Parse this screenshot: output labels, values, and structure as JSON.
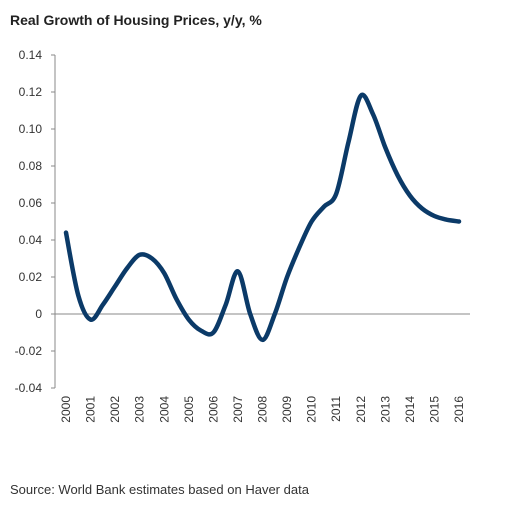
{
  "chart_data": {
    "type": "line",
    "title": "Real Growth of Housing Prices, y/y, %",
    "xlabel": "",
    "ylabel": "",
    "source": "Source: World Bank estimates based on Haver data",
    "ylim": [
      -0.04,
      0.14
    ],
    "y_ticks": [
      0.14,
      0.12,
      0.1,
      0.08,
      0.06,
      0.04,
      0.02,
      0,
      -0.02,
      -0.04
    ],
    "y_tick_labels": [
      "0.14",
      "0.12",
      "0.10",
      "0.08",
      "0.06",
      "0.04",
      "0.02",
      "0",
      "-0.02",
      "-0.04"
    ],
    "categories": [
      "2000",
      "2001",
      "2002",
      "2003",
      "2004",
      "2005",
      "2006",
      "2007",
      "2008",
      "2009",
      "2010",
      "2011",
      "2012",
      "2013",
      "2014",
      "2015",
      "2016"
    ],
    "x": [
      2000,
      2000.5,
      2001,
      2001.5,
      2002,
      2002.5,
      2003,
      2003.5,
      2004,
      2004.5,
      2005,
      2005.5,
      2006,
      2006.5,
      2007,
      2007.5,
      2008,
      2008.5,
      2009,
      2009.5,
      2010,
      2010.5,
      2011,
      2011.5,
      2012,
      2012.5,
      2013,
      2013.5,
      2014,
      2014.5,
      2015,
      2015.5,
      2016
    ],
    "series": [
      {
        "color": "#0b3a68",
        "values": [
          0.044,
          0.01,
          -0.003,
          0.005,
          0.015,
          0.025,
          0.032,
          0.03,
          0.022,
          0.008,
          -0.003,
          -0.009,
          -0.01,
          0.005,
          0.023,
          0.0,
          -0.014,
          0.0,
          0.02,
          0.036,
          0.05,
          0.058,
          0.065,
          0.093,
          0.118,
          0.108,
          0.09,
          0.075,
          0.064,
          0.057,
          0.053,
          0.051,
          0.05
        ]
      }
    ],
    "grid": false
  }
}
